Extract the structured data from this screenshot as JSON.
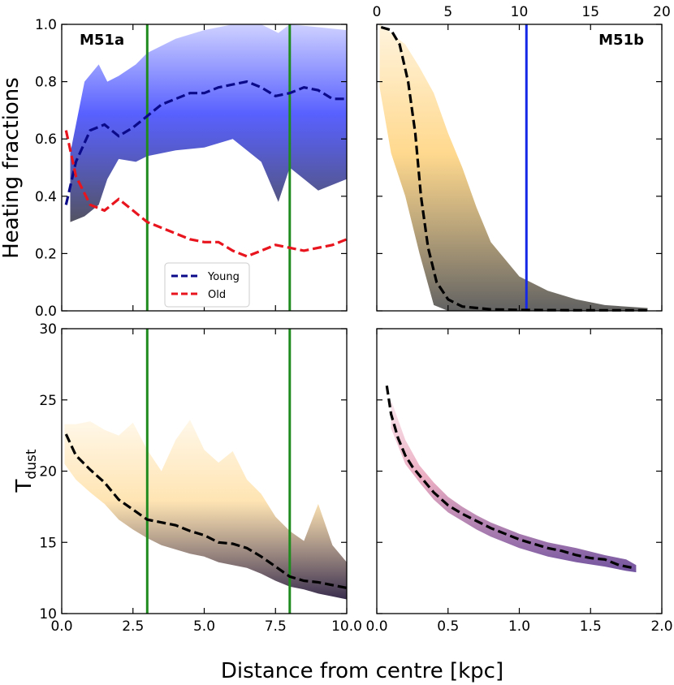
{
  "figure": {
    "xlabel": "Distance from centre [kpc]"
  },
  "chart_data": [
    {
      "id": "m51a-heating",
      "type": "line",
      "title": "M51a",
      "ylabel": "Heating fractions",
      "xlabel": "",
      "xlim": [
        0,
        10
      ],
      "ylim": [
        0,
        1
      ],
      "xticks": [
        0.0,
        2.5,
        5.0,
        7.5,
        10.0
      ],
      "xtick_labels": [],
      "yticks": [
        0.0,
        0.2,
        0.4,
        0.6,
        0.8,
        1.0
      ],
      "ytick_labels": [
        "0.0",
        "0.2",
        "0.4",
        "0.6",
        "0.8",
        "1.0"
      ],
      "vlines": [
        {
          "x": 3,
          "color": "#1f8b1f"
        },
        {
          "x": 8,
          "color": "#1f8b1f"
        }
      ],
      "legend": {
        "position": "lower-center",
        "entries": [
          "Young",
          "Old"
        ]
      },
      "series": [
        {
          "name": "Young",
          "color": "#0a0a8a",
          "style": "dashed",
          "x": [
            0.15,
            0.5,
            1.0,
            1.5,
            2.0,
            2.5,
            3.0,
            3.5,
            4.0,
            4.5,
            5.0,
            5.5,
            6.0,
            6.5,
            7.0,
            7.5,
            8.0,
            8.5,
            9.0,
            9.5,
            10.0
          ],
          "y": [
            0.37,
            0.52,
            0.63,
            0.65,
            0.61,
            0.64,
            0.68,
            0.72,
            0.74,
            0.76,
            0.76,
            0.78,
            0.79,
            0.8,
            0.78,
            0.75,
            0.76,
            0.78,
            0.77,
            0.74,
            0.74
          ]
        },
        {
          "name": "Old",
          "color": "#e8141e",
          "style": "dashed",
          "x": [
            0.15,
            0.5,
            1.0,
            1.5,
            2.0,
            2.5,
            3.0,
            3.5,
            4.0,
            4.5,
            5.0,
            5.5,
            6.0,
            6.5,
            7.0,
            7.5,
            8.0,
            8.5,
            9.0,
            9.5,
            10.0
          ],
          "y": [
            0.63,
            0.47,
            0.37,
            0.35,
            0.39,
            0.35,
            0.31,
            0.29,
            0.27,
            0.25,
            0.24,
            0.24,
            0.21,
            0.19,
            0.21,
            0.23,
            0.22,
            0.21,
            0.22,
            0.23,
            0.25
          ]
        }
      ],
      "band": {
        "color_top": "#3b45ff",
        "color_bottom": "#4a4a5a",
        "x": [
          0.3,
          0.8,
          1.3,
          1.6,
          2.0,
          2.6,
          3.0,
          4.0,
          5.0,
          6.0,
          7.0,
          7.6,
          8.0,
          9.0,
          10.0
        ],
        "upper": [
          0.55,
          0.8,
          0.86,
          0.8,
          0.82,
          0.86,
          0.9,
          0.95,
          0.98,
          1.0,
          1.0,
          0.97,
          1.0,
          0.99,
          0.98
        ],
        "lower": [
          0.31,
          0.33,
          0.37,
          0.46,
          0.53,
          0.52,
          0.54,
          0.56,
          0.57,
          0.6,
          0.52,
          0.38,
          0.5,
          0.42,
          0.46
        ]
      }
    },
    {
      "id": "m51b-heating",
      "type": "line",
      "title": "M51b",
      "xlim": [
        0,
        20
      ],
      "ylim": [
        0,
        1
      ],
      "xticks": [
        0,
        5,
        10,
        15,
        20
      ],
      "xtick_labels": [
        "0",
        "5",
        "10",
        "15",
        "20"
      ],
      "xtick_position": "top",
      "vlines": [
        {
          "x": 10.5,
          "color": "#1428e6"
        }
      ],
      "series": [
        {
          "name": "",
          "color": "#000000",
          "style": "dashed",
          "x": [
            0.3,
            1.0,
            1.6,
            2.2,
            2.7,
            3.1,
            3.6,
            4.2,
            5.0,
            6.0,
            8.0,
            10.0,
            14.0,
            19.0
          ],
          "y": [
            0.99,
            0.98,
            0.93,
            0.8,
            0.62,
            0.4,
            0.22,
            0.1,
            0.04,
            0.015,
            0.005,
            0.003,
            0.002,
            0.002
          ]
        }
      ],
      "band": {
        "color_top": "#ffd27a",
        "color_bottom": "#5a5a5a",
        "x": [
          0.2,
          1.0,
          2.0,
          3.0,
          4.0,
          5.0,
          6.0,
          7.0,
          8.0,
          10.0,
          12.0,
          14.0,
          16.0,
          19.0
        ],
        "upper": [
          1.0,
          0.97,
          0.93,
          0.85,
          0.76,
          0.62,
          0.5,
          0.36,
          0.24,
          0.12,
          0.07,
          0.04,
          0.02,
          0.01
        ],
        "lower": [
          0.78,
          0.55,
          0.4,
          0.2,
          0.02,
          0.0,
          0.0,
          0.0,
          0.0,
          0.0,
          0.0,
          0.0,
          0.0,
          0.0
        ]
      }
    },
    {
      "id": "m51a-tdust",
      "type": "line",
      "ylabel": "T",
      "ylabel_sub": "dust",
      "xlim": [
        0,
        10
      ],
      "ylim": [
        10,
        30
      ],
      "xticks": [
        0.0,
        2.5,
        5.0,
        7.5,
        10.0
      ],
      "xtick_labels": [
        "0.0",
        "2.5",
        "5.0",
        "7.5",
        "10.0"
      ],
      "yticks": [
        10,
        15,
        20,
        25,
        30
      ],
      "ytick_labels": [
        "10",
        "15",
        "20",
        "25",
        "30"
      ],
      "vlines": [
        {
          "x": 3,
          "color": "#1f8b1f"
        },
        {
          "x": 8,
          "color": "#1f8b1f"
        }
      ],
      "series": [
        {
          "name": "",
          "color": "#000000",
          "style": "dashed",
          "x": [
            0.15,
            0.5,
            1.0,
            1.5,
            2.0,
            2.5,
            3.0,
            3.5,
            4.0,
            4.5,
            5.0,
            5.5,
            6.0,
            6.5,
            7.0,
            7.5,
            8.0,
            8.5,
            9.0,
            9.5,
            10.0
          ],
          "y": [
            22.6,
            21.1,
            20.1,
            19.2,
            18.0,
            17.3,
            16.6,
            16.4,
            16.2,
            15.8,
            15.5,
            15.0,
            14.9,
            14.6,
            14.0,
            13.3,
            12.6,
            12.3,
            12.2,
            12.0,
            11.8
          ]
        }
      ],
      "band": {
        "color_top": "#ffe0a6",
        "color_bottom": "#2e2245",
        "x": [
          0.1,
          0.5,
          1.0,
          1.5,
          2.0,
          2.5,
          3.0,
          3.5,
          4.0,
          4.5,
          5.0,
          5.5,
          6.0,
          6.5,
          7.0,
          7.5,
          8.0,
          8.5,
          9.0,
          9.5,
          10.0
        ],
        "upper": [
          23.3,
          23.3,
          23.5,
          22.9,
          22.5,
          23.4,
          21.5,
          20.0,
          22.2,
          23.6,
          21.5,
          20.6,
          21.4,
          19.4,
          18.4,
          16.8,
          15.8,
          15.1,
          17.7,
          14.8,
          13.6
        ],
        "lower": [
          20.5,
          19.4,
          18.5,
          17.7,
          16.6,
          15.9,
          15.3,
          14.8,
          14.5,
          14.2,
          14.0,
          13.6,
          13.4,
          13.2,
          12.8,
          12.3,
          11.9,
          11.7,
          11.4,
          11.2,
          11.0
        ]
      }
    },
    {
      "id": "m51b-tdust",
      "type": "scatter",
      "xlim": [
        0,
        2.0
      ],
      "ylim": [
        10,
        30
      ],
      "xticks": [
        0.0,
        0.5,
        1.0,
        1.5,
        2.0
      ],
      "xtick_labels": [
        "0.0",
        "0.5",
        "1.0",
        "1.5",
        "2.0"
      ],
      "series": [
        {
          "name": "",
          "color": "#000000",
          "style": "dashed",
          "x": [
            0.07,
            0.1,
            0.15,
            0.2,
            0.25,
            0.3,
            0.4,
            0.5,
            0.6,
            0.7,
            0.8,
            0.9,
            1.0,
            1.1,
            1.2,
            1.3,
            1.4,
            1.5,
            1.6,
            1.7,
            1.8
          ],
          "y": [
            26.0,
            24.0,
            22.3,
            21.1,
            20.3,
            19.7,
            18.5,
            17.6,
            17.0,
            16.5,
            16.0,
            15.6,
            15.2,
            14.9,
            14.6,
            14.4,
            14.1,
            13.9,
            13.8,
            13.4,
            13.2
          ]
        }
      ],
      "band": {
        "color_top": "#e8a0b8",
        "color_bottom": "#6a4a9a",
        "x": [
          0.1,
          0.2,
          0.3,
          0.4,
          0.5,
          0.6,
          0.7,
          0.8,
          0.9,
          1.0,
          1.2,
          1.4,
          1.6,
          1.75,
          1.82
        ],
        "upper": [
          25.0,
          22.2,
          20.4,
          19.2,
          18.2,
          17.5,
          16.9,
          16.4,
          16.0,
          15.6,
          15.0,
          14.6,
          14.1,
          13.8,
          13.4
        ],
        "lower": [
          23.0,
          20.5,
          19.2,
          18.0,
          17.1,
          16.5,
          15.9,
          15.4,
          15.0,
          14.6,
          14.0,
          13.6,
          13.3,
          13.0,
          12.9
        ]
      }
    }
  ]
}
